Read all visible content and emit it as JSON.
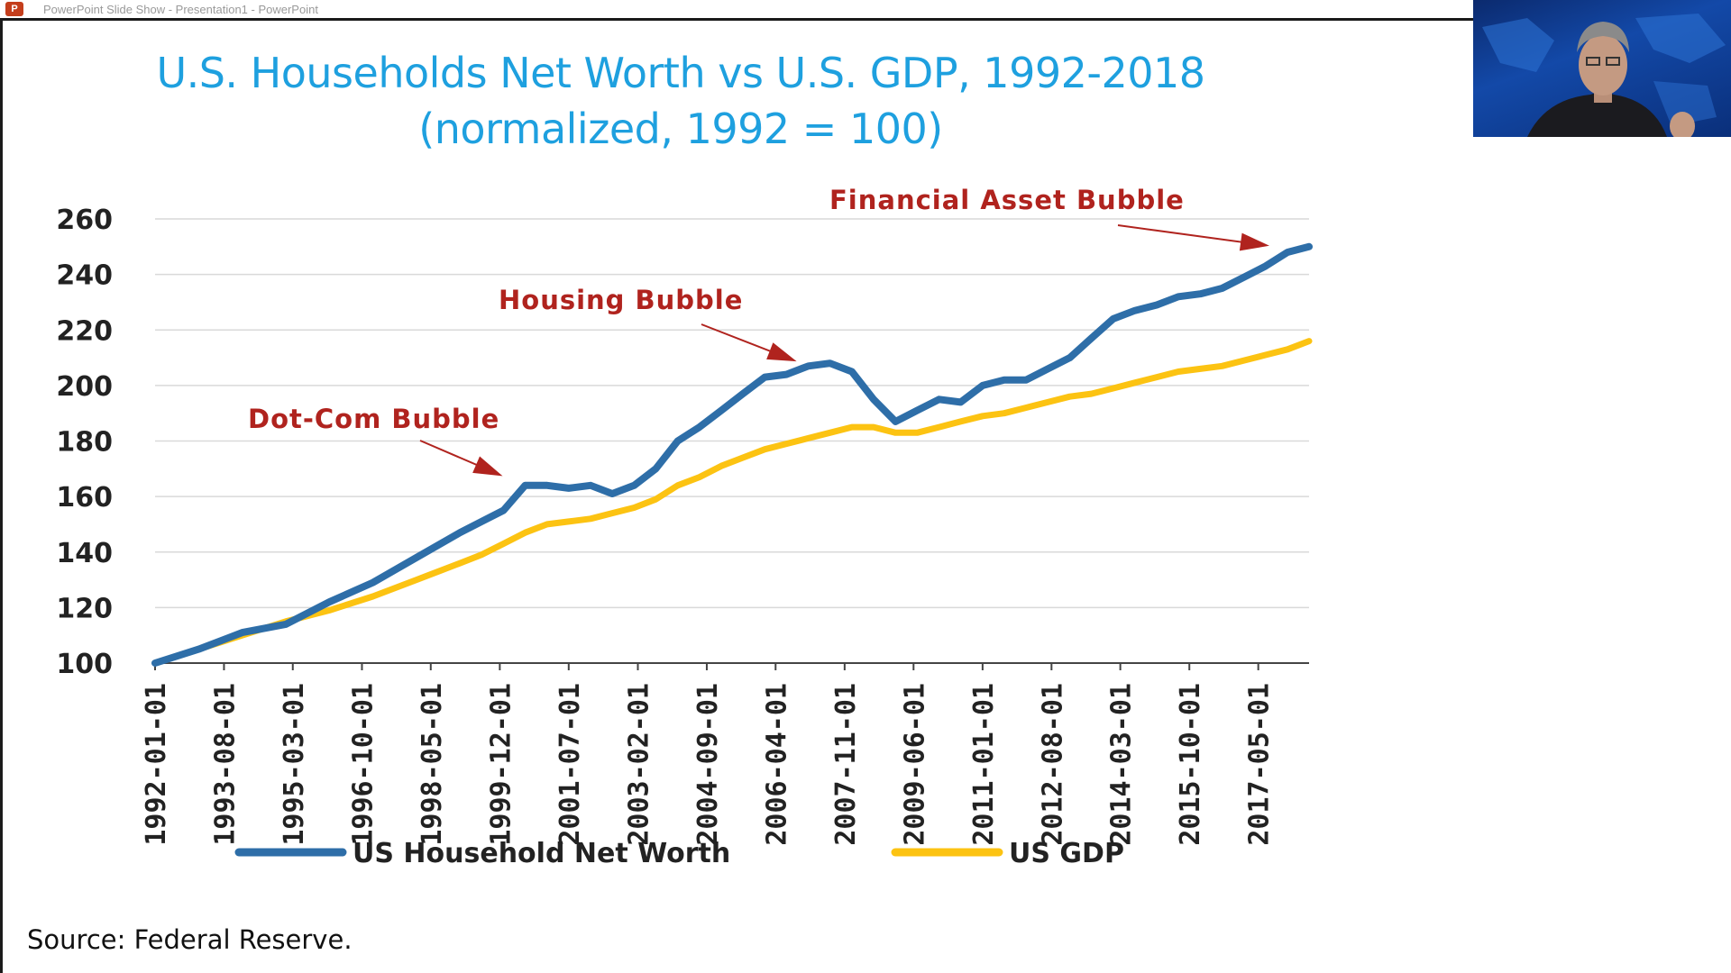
{
  "window": {
    "title": "PowerPoint Slide Show  -  Presentation1 - PowerPoint",
    "app_icon": "powerpoint-icon"
  },
  "slide": {
    "title_line1": "U.S. Households Net Worth vs U.S. GDP, 1992-2018",
    "title_line2": "(normalized, 1992 = 100)",
    "source": "Source: Federal Reserve."
  },
  "colors": {
    "title": "#1ea0df",
    "net_worth": "#2e6ea8",
    "gdp": "#fcc312",
    "annotation": "#b0231e",
    "grid": "#d9d9d9"
  },
  "chart_data": {
    "type": "line",
    "title": "U.S. Households Net Worth vs U.S. GDP, 1992-2018 (normalized, 1992 = 100)",
    "xlabel": "",
    "ylabel": "",
    "ylim": [
      100,
      260
    ],
    "yticks": [
      "100",
      "120",
      "140",
      "160",
      "180",
      "200",
      "220",
      "240",
      "260"
    ],
    "xticks": [
      "1992-01-01",
      "1993-08-01",
      "1995-03-01",
      "1996-10-01",
      "1998-05-01",
      "1999-12-01",
      "2001-07-01",
      "2003-02-01",
      "2004-09-01",
      "2006-04-01",
      "2007-11-01",
      "2009-06-01",
      "2011-01-01",
      "2012-08-01",
      "2014-03-01",
      "2015-10-01",
      "2017-05-01"
    ],
    "x": [
      "1992-01-01",
      "1993-01-01",
      "1994-01-01",
      "1995-01-01",
      "1996-01-01",
      "1997-01-01",
      "1998-01-01",
      "1999-01-01",
      "1999-07-01",
      "2000-01-01",
      "2000-07-01",
      "2001-01-01",
      "2001-07-01",
      "2002-01-01",
      "2002-07-01",
      "2003-01-01",
      "2003-07-01",
      "2004-01-01",
      "2004-07-01",
      "2005-01-01",
      "2005-07-01",
      "2006-01-01",
      "2006-07-01",
      "2007-01-01",
      "2007-07-01",
      "2008-01-01",
      "2008-07-01",
      "2009-01-01",
      "2009-07-01",
      "2010-01-01",
      "2010-07-01",
      "2011-01-01",
      "2011-07-01",
      "2012-01-01",
      "2012-07-01",
      "2013-01-01",
      "2013-07-01",
      "2014-01-01",
      "2014-07-01",
      "2015-01-01",
      "2015-07-01",
      "2016-01-01",
      "2016-07-01",
      "2017-01-01",
      "2017-07-01",
      "2018-01-01",
      "2018-07-01"
    ],
    "series": [
      {
        "name": "US Household Net Worth",
        "values": [
          100,
          105,
          111,
          114,
          122,
          129,
          138,
          147,
          151,
          155,
          164,
          164,
          163,
          164,
          161,
          164,
          170,
          180,
          185,
          191,
          197,
          203,
          204,
          207,
          208,
          205,
          195,
          187,
          191,
          195,
          194,
          200,
          202,
          202,
          206,
          210,
          217,
          224,
          227,
          229,
          232,
          233,
          235,
          239,
          243,
          248,
          250
        ]
      },
      {
        "name": "US GDP",
        "values": [
          100,
          105,
          110,
          115,
          119,
          124,
          130,
          136,
          139,
          143,
          147,
          150,
          151,
          152,
          154,
          156,
          159,
          164,
          167,
          171,
          174,
          177,
          179,
          181,
          183,
          185,
          185,
          183,
          183,
          185,
          187,
          189,
          190,
          192,
          194,
          196,
          197,
          199,
          201,
          203,
          205,
          206,
          207,
          209,
          211,
          213,
          216
        ]
      }
    ],
    "legend_position": "bottom",
    "grid": true,
    "annotations": [
      {
        "text": "Financial Asset Bubble",
        "at_x": "2018-01-01",
        "at_y": 248
      },
      {
        "text": "Housing Bubble",
        "at_x": "2006-01-01",
        "at_y": 206
      },
      {
        "text": "Dot-Com Bubble",
        "at_x": "2000-01-01",
        "at_y": 164
      }
    ]
  },
  "webcam": {
    "label": "presenter-video"
  }
}
